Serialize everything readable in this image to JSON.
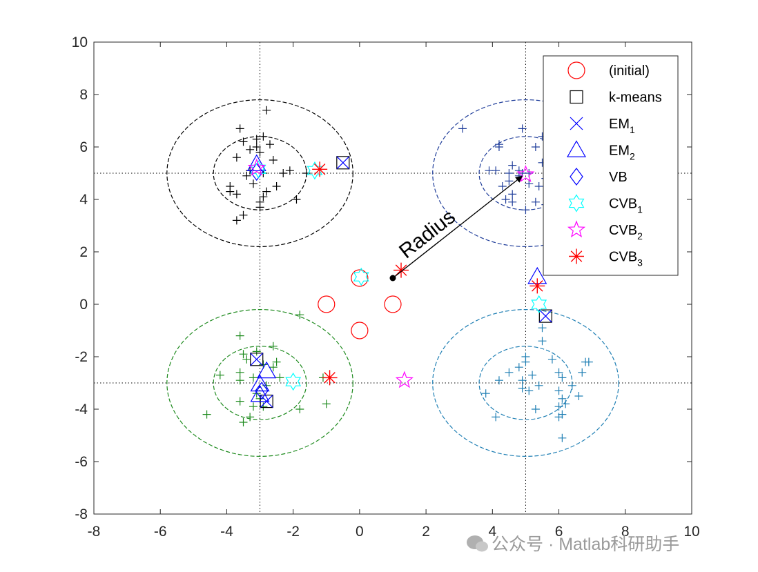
{
  "chart_data": {
    "type": "scatter",
    "xlim": [
      -8,
      10
    ],
    "ylim": [
      -8,
      10
    ],
    "xticks": [
      "-8",
      "-6",
      "-4",
      "-2",
      "0",
      "2",
      "4",
      "6",
      "8",
      "10"
    ],
    "yticks": [
      "-8",
      "-6",
      "-4",
      "-2",
      "0",
      "2",
      "4",
      "6",
      "8",
      "10"
    ],
    "grid": false,
    "legend_placement": "top-right",
    "legend": [
      {
        "key": "initial",
        "label": "(initial)",
        "sub": "",
        "marker": "circle",
        "color": "#ff0000"
      },
      {
        "key": "kmeans",
        "label": "k-means",
        "sub": "",
        "marker": "square",
        "color": "#000000"
      },
      {
        "key": "em1",
        "label": "EM",
        "sub": "1",
        "marker": "x",
        "color": "#0000ff"
      },
      {
        "key": "em2",
        "label": "EM",
        "sub": "2",
        "marker": "triangle",
        "color": "#0000ff"
      },
      {
        "key": "vb",
        "label": "VB",
        "sub": "",
        "marker": "diamond",
        "color": "#0000ff"
      },
      {
        "key": "cvb1",
        "label": "CVB",
        "sub": "1",
        "marker": "hexagram",
        "color": "#00ffff"
      },
      {
        "key": "cvb2",
        "label": "CVB",
        "sub": "2",
        "marker": "pentagram",
        "color": "#ff00ff"
      },
      {
        "key": "cvb3",
        "label": "CVB",
        "sub": "3",
        "marker": "asterisk",
        "color": "#ff0000"
      }
    ],
    "clusters": [
      {
        "center": [
          -3,
          5
        ],
        "color": "#000000",
        "points": [
          [
            -3.6,
            6.7
          ],
          [
            -3.5,
            6.2
          ],
          [
            -3.1,
            6.3
          ],
          [
            -2.9,
            6.4
          ],
          [
            -2.7,
            6.1
          ],
          [
            -3.3,
            5.9
          ],
          [
            -2.8,
            7.4
          ],
          [
            -3.7,
            5.6
          ],
          [
            -3.1,
            6.0
          ],
          [
            -3.0,
            5.8
          ],
          [
            -2.6,
            5.5
          ],
          [
            -2.3,
            5.0
          ],
          [
            -2.1,
            5.1
          ],
          [
            -3.3,
            5.1
          ],
          [
            -2.9,
            5.0
          ],
          [
            -3.4,
            4.9
          ],
          [
            -3.9,
            4.5
          ],
          [
            -3.9,
            4.3
          ],
          [
            -3.7,
            4.2
          ],
          [
            -3.0,
            3.9
          ],
          [
            -2.8,
            4.3
          ],
          [
            -3.2,
            4.6
          ],
          [
            -2.5,
            4.5
          ],
          [
            -1.9,
            4.0
          ],
          [
            -3.5,
            3.4
          ],
          [
            -3.0,
            3.7
          ],
          [
            -3.7,
            3.2
          ],
          [
            -1.6,
            5.0
          ],
          [
            -2.9,
            4.1
          ]
        ]
      },
      {
        "center": [
          5,
          5
        ],
        "color": "#1f3d9a",
        "points": [
          [
            3.1,
            6.7
          ],
          [
            4.2,
            6.1
          ],
          [
            4.9,
            6.7
          ],
          [
            5.5,
            6.4
          ],
          [
            5.3,
            6.0
          ],
          [
            5.7,
            5.8
          ],
          [
            4.1,
            5.1
          ],
          [
            3.9,
            5.1
          ],
          [
            4.5,
            5.0
          ],
          [
            4.6,
            5.3
          ],
          [
            4.9,
            5.0
          ],
          [
            4.8,
            4.9
          ],
          [
            4.5,
            4.7
          ],
          [
            4.3,
            4.5
          ],
          [
            4.6,
            4.2
          ],
          [
            4.4,
            4.0
          ],
          [
            4.6,
            3.9
          ],
          [
            5.1,
            4.6
          ],
          [
            5.4,
            4.5
          ],
          [
            5.3,
            3.9
          ],
          [
            5.0,
            3.6
          ],
          [
            5.6,
            3.8
          ],
          [
            4.8,
            5.1
          ],
          [
            5.1,
            5.0
          ],
          [
            5.5,
            5.4
          ],
          [
            4.2,
            6.0
          ],
          [
            5.6,
            4.8
          ]
        ]
      },
      {
        "center": [
          -3,
          -3
        ],
        "color": "#1d8a1d",
        "points": [
          [
            -3.6,
            -1.2
          ],
          [
            -3.5,
            -1.9
          ],
          [
            -3.1,
            -1.8
          ],
          [
            -2.6,
            -1.6
          ],
          [
            -1.8,
            -0.4
          ],
          [
            -3.4,
            -2.1
          ],
          [
            -2.9,
            -2.3
          ],
          [
            -2.5,
            -2.2
          ],
          [
            -3.6,
            -2.6
          ],
          [
            -2.6,
            -2.4
          ],
          [
            -4.2,
            -2.7
          ],
          [
            -3.6,
            -2.9
          ],
          [
            -3.2,
            -2.8
          ],
          [
            -2.8,
            -3.1
          ],
          [
            -2.4,
            -2.8
          ],
          [
            -3.1,
            -3.4
          ],
          [
            -3.6,
            -3.7
          ],
          [
            -3.2,
            -3.9
          ],
          [
            -2.9,
            -3.9
          ],
          [
            -4.6,
            -4.2
          ],
          [
            -3.5,
            -4.5
          ],
          [
            -1.8,
            -4.0
          ],
          [
            -1.0,
            -3.8
          ],
          [
            -1.1,
            -2.8
          ],
          [
            -3.3,
            -4.3
          ],
          [
            -3.0,
            -3.6
          ]
        ]
      },
      {
        "center": [
          5,
          -3
        ],
        "color": "#1f7fb4",
        "points": [
          [
            5.5,
            -0.9
          ],
          [
            5.5,
            -1.4
          ],
          [
            5.0,
            -2.0
          ],
          [
            5.0,
            -2.2
          ],
          [
            4.8,
            -2.4
          ],
          [
            5.8,
            -2.1
          ],
          [
            6.0,
            -2.6
          ],
          [
            6.1,
            -2.8
          ],
          [
            6.8,
            -2.2
          ],
          [
            6.9,
            -2.2
          ],
          [
            4.5,
            -2.6
          ],
          [
            4.2,
            -2.9
          ],
          [
            4.9,
            -2.9
          ],
          [
            5.2,
            -2.7
          ],
          [
            4.9,
            -3.2
          ],
          [
            5.1,
            -3.3
          ],
          [
            5.4,
            -3.1
          ],
          [
            6.4,
            -3.1
          ],
          [
            6.7,
            -2.6
          ],
          [
            6.0,
            -3.3
          ],
          [
            6.1,
            -3.6
          ],
          [
            6.6,
            -3.5
          ],
          [
            6.2,
            -3.8
          ],
          [
            3.8,
            -3.4
          ],
          [
            4.1,
            -4.3
          ],
          [
            5.3,
            -4.0
          ],
          [
            6.0,
            -4.3
          ],
          [
            6.1,
            -4.2
          ],
          [
            6.1,
            -5.1
          ],
          [
            6.0,
            -3.9
          ]
        ]
      }
    ],
    "estimates": {
      "initial": [
        [
          1,
          0
        ],
        [
          -1,
          0
        ],
        [
          0,
          1
        ],
        [
          0,
          -1
        ]
      ],
      "kmeans": [
        [
          -0.5,
          5.4
        ],
        [
          5.6,
          -0.45
        ],
        [
          -3.1,
          -2.1
        ],
        [
          -2.8,
          -3.7
        ]
      ],
      "em1": [
        [
          -0.5,
          5.4
        ],
        [
          5.6,
          -0.45
        ],
        [
          -3.1,
          -2.1
        ],
        [
          -2.8,
          -3.7
        ]
      ],
      "em2": [
        [
          -3.1,
          5.35
        ],
        [
          5.35,
          1.05
        ],
        [
          -2.8,
          -2.55
        ],
        [
          -3.0,
          -3.05
        ],
        [
          -3.0,
          -3.45
        ]
      ],
      "vb": [
        [
          -3.1,
          5.05
        ],
        [
          -2.95,
          -3.3
        ]
      ],
      "cvb1": [
        [
          -3.05,
          5.15
        ],
        [
          -1.35,
          5.1
        ],
        [
          0.05,
          1.05
        ],
        [
          5.4,
          0.0
        ],
        [
          -2.0,
          -2.95
        ]
      ],
      "cvb2": [
        [
          -3.1,
          5.2
        ],
        [
          5.0,
          4.95
        ],
        [
          1.35,
          -2.9
        ]
      ],
      "cvb3": [
        [
          -1.2,
          5.15
        ],
        [
          1.25,
          1.3
        ],
        [
          5.35,
          0.7
        ],
        [
          -0.9,
          -2.8
        ]
      ]
    },
    "annotations": [
      {
        "text": "Radius",
        "from": [
          1,
          1
        ],
        "to": [
          5,
          5
        ]
      }
    ],
    "watermark": "公众号 · Matlab科研助手"
  }
}
